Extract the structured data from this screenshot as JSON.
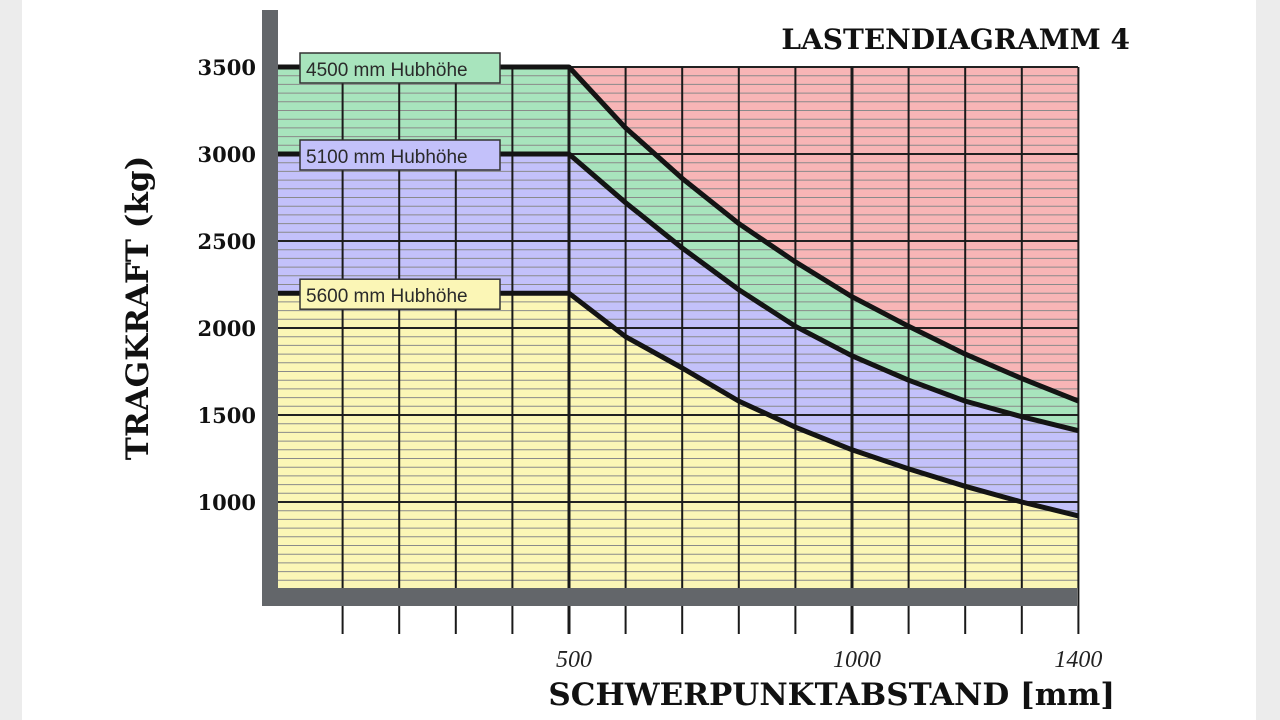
{
  "chart_data": {
    "type": "area",
    "title": "LASTENDIAGRAMM 4",
    "xlabel": "SCHWERPUNKTABSTAND [mm]",
    "ylabel": "TRAGKRAFT (kg)",
    "xlim": [
      0,
      1400
    ],
    "ylim": [
      500,
      3600
    ],
    "xticks": [
      500,
      1000,
      1400
    ],
    "yticks": [
      1000,
      1500,
      2000,
      2500,
      3000,
      3500
    ],
    "grid": true,
    "legend": "labels on curves (left)",
    "series": [
      {
        "name": "4500 mm Hubhöhe",
        "color": "#a8e4bd",
        "x": [
          0,
          500,
          600,
          700,
          800,
          900,
          1000,
          1100,
          1200,
          1300,
          1400
        ],
        "y": [
          3500,
          3500,
          3150,
          2860,
          2600,
          2380,
          2180,
          2010,
          1850,
          1710,
          1580
        ]
      },
      {
        "name": "5100 mm Hubhöhe",
        "color": "#c3c1fa",
        "x": [
          0,
          500,
          600,
          700,
          800,
          900,
          1000,
          1100,
          1200,
          1300,
          1400
        ],
        "y": [
          3000,
          3000,
          2720,
          2460,
          2220,
          2010,
          1840,
          1700,
          1580,
          1490,
          1410
        ]
      },
      {
        "name": "5600 mm Hubhöhe",
        "color": "#fbf6b6",
        "x": [
          0,
          500,
          600,
          700,
          800,
          900,
          1000,
          1100,
          1200,
          1300,
          1400
        ],
        "y": [
          2200,
          2200,
          1950,
          1770,
          1580,
          1430,
          1300,
          1190,
          1090,
          1000,
          920
        ]
      }
    ],
    "overload_color": "#f8b5b6"
  }
}
